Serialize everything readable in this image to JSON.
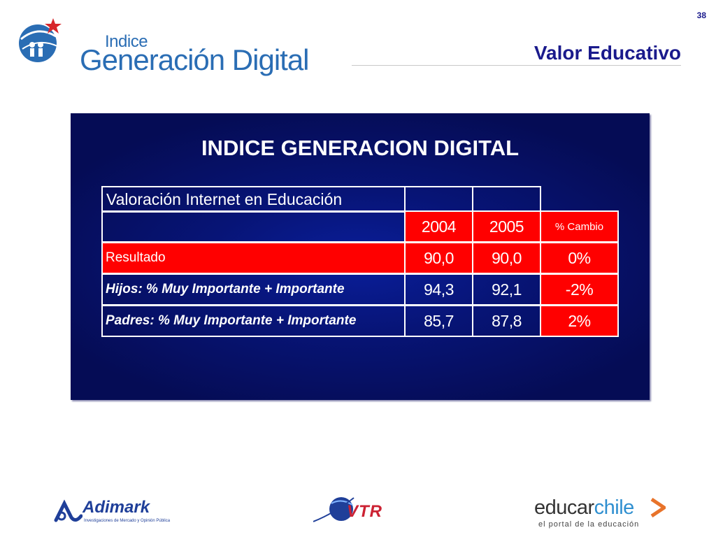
{
  "slide": {
    "number": "38"
  },
  "header": {
    "logo_small": "Indice",
    "logo_big": "Generación Digital",
    "title": "Valor Educativo"
  },
  "panel": {
    "title": "INDICE GENERACION DIGITAL",
    "table": {
      "caption": "Valoración Internet en Educación",
      "columns": [
        "2004",
        "2005",
        "% Cambio"
      ],
      "rows": [
        {
          "label": "Resultado",
          "values": [
            "90,0",
            "90,0",
            "0%"
          ]
        },
        {
          "label": "Hijos: % Muy Importante + Importante",
          "values": [
            "94,3",
            "92,1",
            "-2%"
          ]
        },
        {
          "label": "Padres: % Muy Importante + Importante",
          "values": [
            "85,7",
            "87,8",
            "2%"
          ]
        }
      ]
    }
  },
  "footer": {
    "adimark_name": "Adimark",
    "adimark_tagline": "Investigaciones de Mercado y Opinión Pública",
    "vtr_name": "VTR",
    "educar_part1": "educar",
    "educar_part2": "chile",
    "educar_tagline": "el portal de la educación"
  },
  "colors": {
    "panel_bg": "#071476",
    "highlight_red": "#ff0000",
    "title_blue": "#1a1a8c",
    "logo_blue": "#2a6db4"
  }
}
